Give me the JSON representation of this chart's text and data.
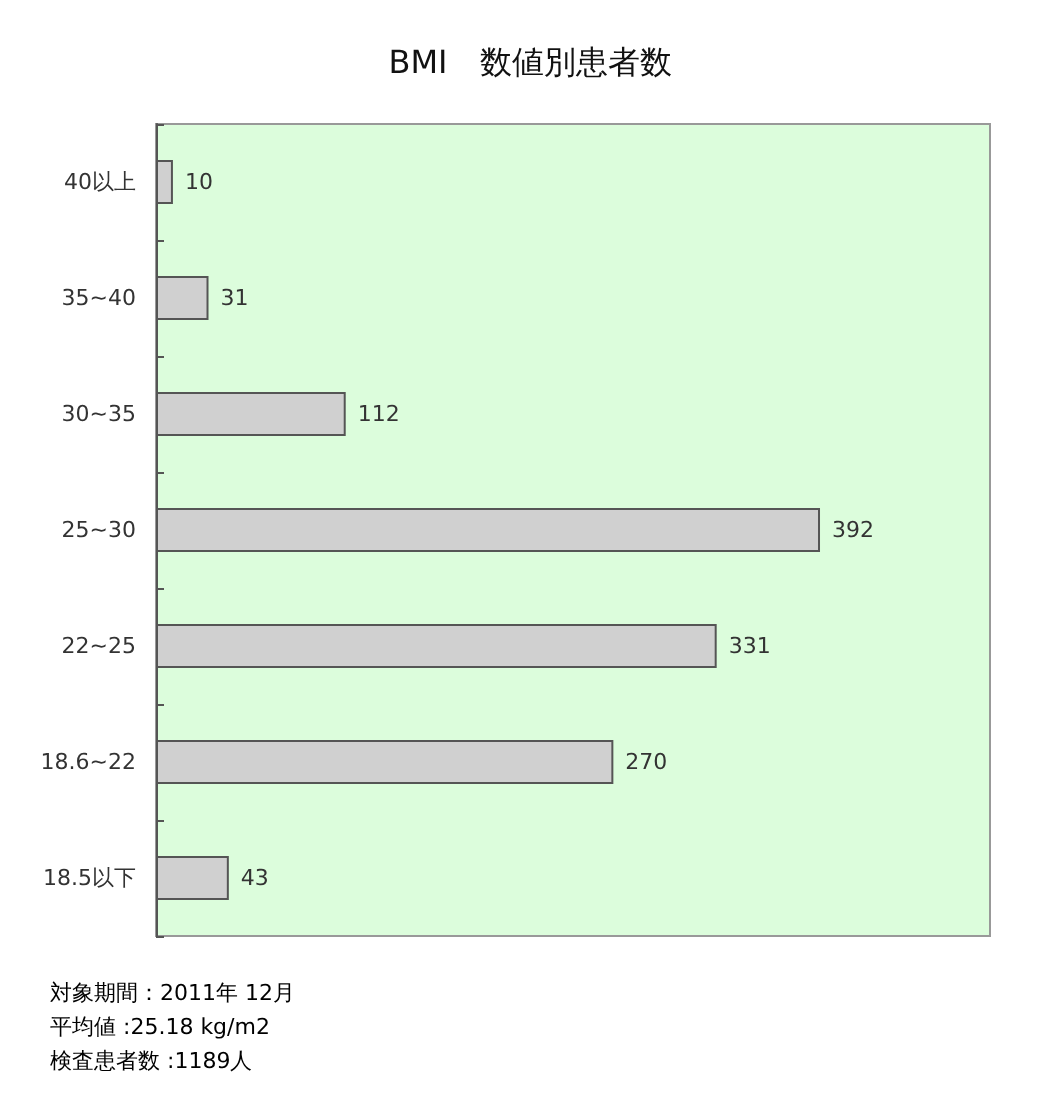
{
  "chart_data": {
    "type": "bar",
    "orientation": "horizontal",
    "title": "BMI　数値別患者数",
    "categories": [
      "40以上",
      "35~40",
      "30~35",
      "25~30",
      "22~25",
      "18.6~22",
      "18.5以下"
    ],
    "values": [
      10,
      31,
      112,
      392,
      331,
      270,
      43
    ],
    "color": "#d0d0d0",
    "data_labels": true,
    "annotations": [
      "対象期間：2011年 12月",
      "平均値 :25.18 kg/m2",
      "検査患者数 :1189人"
    ]
  }
}
